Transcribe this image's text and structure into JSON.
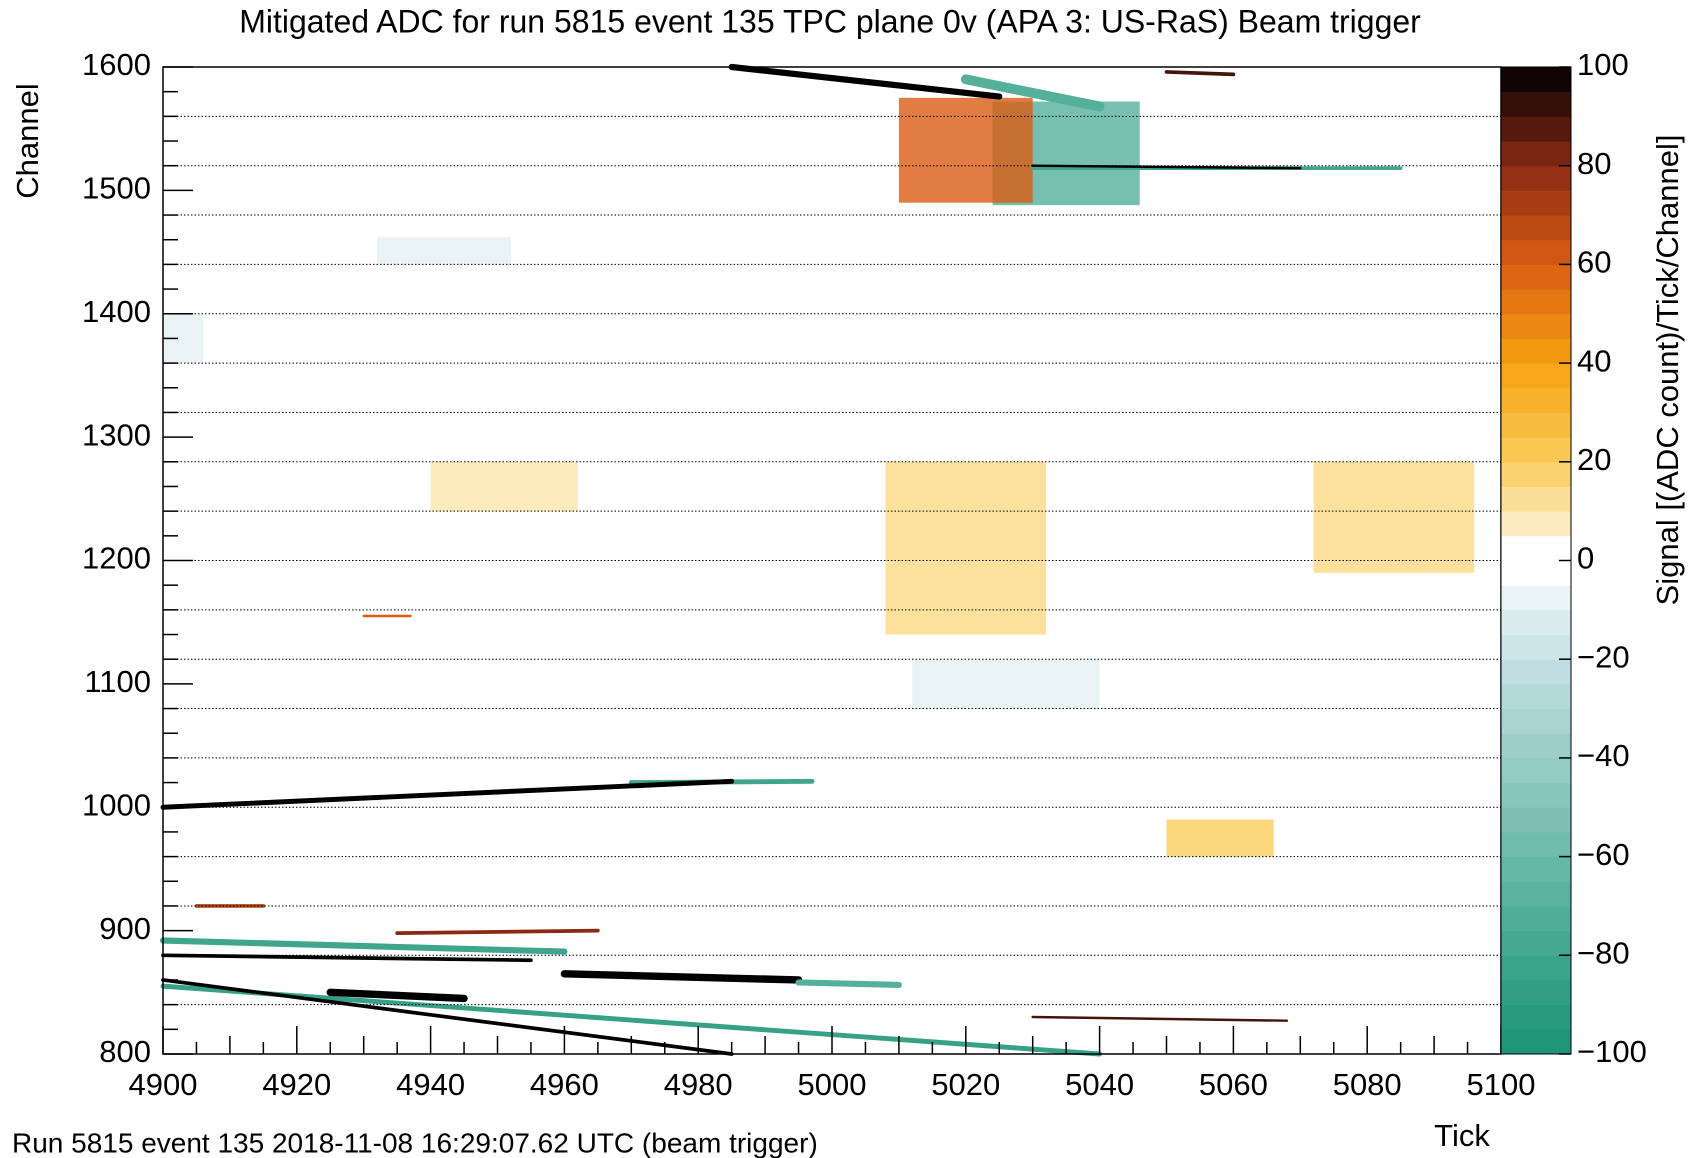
{
  "chart_data": {
    "type": "heatmap",
    "title": "Mitigated ADC for run 5815 event 135 TPC plane 0v (APA 3: US-RaS) Beam trigger",
    "x_label": "Tick",
    "y_label": "Channel",
    "z_label": "Signal [(ADC count)/Tick/Channel]",
    "footer": "Run 5815 event 135 2018-11-08 16:29:07.62 UTC (beam trigger)",
    "xlim": [
      4900,
      5100
    ],
    "xticks": [
      4900,
      4920,
      4940,
      4960,
      4980,
      5000,
      5020,
      5040,
      5060,
      5080,
      5100
    ],
    "ylim": [
      800,
      1600
    ],
    "yticks": [
      800,
      900,
      1000,
      1100,
      1200,
      1300,
      1400,
      1500,
      1600
    ],
    "zlim": [
      -100,
      100
    ],
    "zticks": [
      {
        "value": -100,
        "label": "−100"
      },
      {
        "value": -80,
        "label": "−80"
      },
      {
        "value": -60,
        "label": "−60"
      },
      {
        "value": -40,
        "label": "−40"
      },
      {
        "value": -20,
        "label": "−20"
      },
      0,
      20,
      40,
      60,
      80,
      100
    ],
    "palette": [
      "#1a9275",
      "#3fa68d",
      "#6bbaa9",
      "#97cdc4",
      "#c6e0e6",
      "#ffffff",
      "#f9cc5c",
      "#f7a20f",
      "#d95d13",
      "#8a2a14",
      "#000000"
    ],
    "channel_boundaries": [
      840,
      880,
      920,
      960,
      1000,
      1040,
      1080,
      1120,
      1160,
      1200,
      1240,
      1280,
      1320,
      1360,
      1400,
      1440,
      1480,
      1520,
      1560
    ],
    "patches": [
      {
        "x": [
          5008,
          5032
        ],
        "y": [
          1140,
          1280
        ],
        "value": 15
      },
      {
        "x": [
          5072,
          5096
        ],
        "y": [
          1190,
          1280
        ],
        "value": 15
      },
      {
        "x": [
          4940,
          4962
        ],
        "y": [
          1240,
          1280
        ],
        "value": 10
      },
      {
        "x": [
          5050,
          5066
        ],
        "y": [
          960,
          990
        ],
        "value": 20
      },
      {
        "x": [
          4900,
          4906
        ],
        "y": [
          1360,
          1400
        ],
        "value": -10
      },
      {
        "x": [
          5012,
          5040
        ],
        "y": [
          1080,
          1120
        ],
        "value": -10
      },
      {
        "x": [
          4932,
          4952
        ],
        "y": [
          1440,
          1462
        ],
        "value": -10
      },
      {
        "x": [
          5024,
          5046
        ],
        "y": [
          1488,
          1572
        ],
        "value": -70
      },
      {
        "x": [
          5010,
          5030
        ],
        "y": [
          1490,
          1575
        ],
        "value": 60
      }
    ],
    "tracks": [
      {
        "x": [
          4900,
          5040
        ],
        "y": [
          855,
          800
        ],
        "value": -85,
        "width": 4
      },
      {
        "x": [
          4900,
          4985
        ],
        "y": [
          860,
          800
        ],
        "value": 100,
        "width": 3
      },
      {
        "x": [
          4970,
          4997
        ],
        "y": [
          1020,
          1021
        ],
        "value": -80,
        "width": 4
      },
      {
        "x": [
          4900,
          4985
        ],
        "y": [
          1000,
          1021
        ],
        "value": 100,
        "width": 4
      },
      {
        "x": [
          4900,
          4960
        ],
        "y": [
          892,
          883
        ],
        "value": -80,
        "width": 5
      },
      {
        "x": [
          4900,
          4955
        ],
        "y": [
          880,
          876
        ],
        "value": 100,
        "width": 3
      },
      {
        "x": [
          4925,
          4945
        ],
        "y": [
          850,
          845
        ],
        "value": 100,
        "width": 6
      },
      {
        "x": [
          4960,
          4995
        ],
        "y": [
          865,
          860
        ],
        "value": 100,
        "width": 6
      },
      {
        "x": [
          4995,
          5010
        ],
        "y": [
          858,
          856
        ],
        "value": -70,
        "width": 5
      },
      {
        "x": [
          4935,
          4965
        ],
        "y": [
          898,
          900
        ],
        "value": 80,
        "width": 3
      },
      {
        "x": [
          4905,
          4915
        ],
        "y": [
          920,
          920
        ],
        "value": 70,
        "width": 3
      },
      {
        "x": [
          4985,
          5025
        ],
        "y": [
          1600,
          1576
        ],
        "value": 100,
        "width": 5
      },
      {
        "x": [
          5020,
          5040
        ],
        "y": [
          1590,
          1568
        ],
        "value": -70,
        "width": 8
      },
      {
        "x": [
          5030,
          5085
        ],
        "y": [
          1518,
          1518
        ],
        "value": -80,
        "width": 3
      },
      {
        "x": [
          5030,
          5070
        ],
        "y": [
          1520,
          1518
        ],
        "value": 100,
        "width": 2
      },
      {
        "x": [
          5050,
          5060
        ],
        "y": [
          1596,
          1594
        ],
        "value": 90,
        "width": 3
      },
      {
        "x": [
          5030,
          5068
        ],
        "y": [
          830,
          827
        ],
        "value": 90,
        "width": 2
      },
      {
        "x": [
          4930,
          4937
        ],
        "y": [
          1155,
          1155
        ],
        "value": 60,
        "width": 2
      }
    ]
  }
}
